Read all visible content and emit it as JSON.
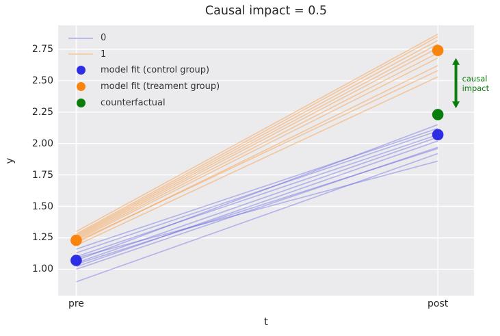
{
  "figure": {
    "title": "Causal impact = 0.5",
    "xlabel": "t",
    "ylabel": "y"
  },
  "legend": {
    "items": [
      {
        "label": "0",
        "marker": "line",
        "color": "#b9b9ec"
      },
      {
        "label": "1",
        "marker": "line",
        "color": "#f6d0a9"
      },
      {
        "label": "model fit (control group)",
        "marker": "dot",
        "color": "#2d2de4"
      },
      {
        "label": "model fit (treament group)",
        "marker": "dot",
        "color": "#f8830d"
      },
      {
        "label": "counterfactual",
        "marker": "dot",
        "color": "#0a7e0a"
      }
    ]
  },
  "chart_data": {
    "type": "line",
    "title": "Causal impact = 0.5",
    "xlabel": "t",
    "ylabel": "y",
    "x_categories": [
      "pre",
      "post"
    ],
    "xlim": [
      -0.05,
      1.1
    ],
    "ylim": [
      0.79,
      2.94
    ],
    "yticks": [
      2.75,
      2.5,
      2.25,
      2.0,
      1.75,
      1.5,
      1.25,
      1.0
    ],
    "ytick_labels": [
      "2.75",
      "2.50",
      "2.25",
      "2.00",
      "1.75",
      "1.50",
      "1.25",
      "1.00"
    ],
    "grid": true,
    "background_color": "#ebebee",
    "gridline_color": "#ffffff",
    "series": [
      {
        "name": "0",
        "color": "#5a5ae0",
        "opacity": 0.38,
        "lines": [
          {
            "pre": 0.9,
            "post": 1.92
          },
          {
            "pre": 1.0,
            "post": 1.97
          },
          {
            "pre": 1.02,
            "post": 2.02
          },
          {
            "pre": 1.04,
            "post": 1.96
          },
          {
            "pre": 1.05,
            "post": 2.05
          },
          {
            "pre": 1.07,
            "post": 2.15
          },
          {
            "pre": 1.09,
            "post": 1.86
          },
          {
            "pre": 1.1,
            "post": 2.07
          },
          {
            "pre": 1.13,
            "post": 2.1
          },
          {
            "pre": 1.16,
            "post": 2.12
          }
        ]
      },
      {
        "name": "1",
        "color": "#fa9b3d",
        "opacity": 0.45,
        "lines": [
          {
            "pre": 1.19,
            "post": 2.53
          },
          {
            "pre": 1.21,
            "post": 2.62
          },
          {
            "pre": 1.22,
            "post": 2.58
          },
          {
            "pre": 1.23,
            "post": 2.68
          },
          {
            "pre": 1.24,
            "post": 2.72
          },
          {
            "pre": 1.25,
            "post": 2.76
          },
          {
            "pre": 1.26,
            "post": 2.79
          },
          {
            "pre": 1.27,
            "post": 2.82
          },
          {
            "pre": 1.28,
            "post": 2.85
          },
          {
            "pre": 1.3,
            "post": 2.87
          }
        ]
      }
    ],
    "points": [
      {
        "name": "model fit (control group)",
        "color": "#2d2de4",
        "values": {
          "pre": 1.07,
          "post": 2.07
        }
      },
      {
        "name": "model fit (treament group)",
        "color": "#f8830d",
        "values": {
          "pre": 1.23,
          "post": 2.74
        }
      },
      {
        "name": "counterfactual",
        "color": "#0a7e0a",
        "values": {
          "post": 2.23
        }
      }
    ],
    "annotation": {
      "text_lines": [
        "causal",
        "impact"
      ],
      "color": "#0a7e0a",
      "x": 1.05,
      "y_from": 2.68,
      "y_to": 2.28
    }
  }
}
